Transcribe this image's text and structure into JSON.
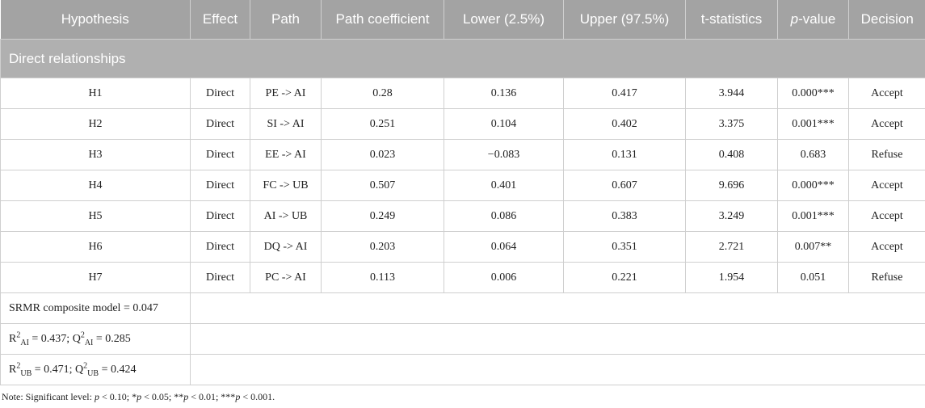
{
  "table": {
    "headers": [
      "Hypothesis",
      "Effect",
      "Path",
      "Path coefficient",
      "Lower (2.5%)",
      "Upper (97.5%)",
      "t-statistics",
      [
        "p",
        "-value"
      ],
      "Decision"
    ],
    "section": "Direct relationships",
    "rows": [
      [
        "H1",
        "Direct",
        "PE -> AI",
        "0.28",
        "0.136",
        "0.417",
        "3.944",
        "0.000***",
        "Accept"
      ],
      [
        "H2",
        "Direct",
        "SI -> AI",
        "0.251",
        "0.104",
        "0.402",
        "3.375",
        "0.001***",
        "Accept"
      ],
      [
        "H3",
        "Direct",
        "EE -> AI",
        "0.023",
        "−0.083",
        "0.131",
        "0.408",
        "0.683",
        "Refuse"
      ],
      [
        "H4",
        "Direct",
        "FC -> UB",
        "0.507",
        "0.401",
        "0.607",
        "9.696",
        "0.000***",
        "Accept"
      ],
      [
        "H5",
        "Direct",
        "AI -> UB",
        "0.249",
        "0.086",
        "0.383",
        "3.249",
        "0.001***",
        "Accept"
      ],
      [
        "H6",
        "Direct",
        "DQ -> AI",
        "0.203",
        "0.064",
        "0.351",
        "2.721",
        "0.007**",
        "Accept"
      ],
      [
        "H7",
        "Direct",
        "PC -> AI",
        "0.113",
        "0.006",
        "0.221",
        "1.954",
        "0.051",
        "Refuse"
      ]
    ],
    "fit_rows": [
      [
        "SRMR composite model = 0.047"
      ],
      [
        "R",
        "2",
        "AI",
        " = 0.437; Q",
        "2",
        "AI",
        " = 0.285"
      ],
      [
        "R",
        "2",
        "UB",
        " = 0.471; Q",
        "2",
        "UB",
        " = 0.424"
      ]
    ]
  },
  "note": [
    "Note: Significant level: ",
    "p",
    " < 0.10; *",
    "p",
    " < 0.05; **",
    "p",
    " < 0.01; ***",
    "p",
    " < 0.001."
  ]
}
